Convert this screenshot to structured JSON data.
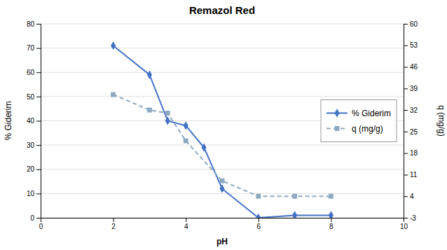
{
  "chart_data": {
    "type": "line",
    "title": "Remazol Red",
    "x_label": "pH",
    "y_label": "% Giderim",
    "y2_label": "q (mg/g)",
    "xlim": [
      0,
      10
    ],
    "xticks": [
      0,
      2,
      4,
      6,
      8,
      10
    ],
    "ylim": [
      0,
      80
    ],
    "yticks": [
      0,
      10,
      20,
      30,
      40,
      50,
      60,
      70,
      80
    ],
    "y2lim": [
      -3,
      60
    ],
    "y2ticks": [
      -3,
      4,
      11,
      18,
      25,
      32,
      39,
      46,
      53,
      60
    ],
    "grid": true,
    "legend": "right",
    "series": [
      {
        "name": "% Giderim",
        "color": "#4472C4",
        "marker": "diamond",
        "line_style": "solid",
        "axis": "y",
        "x": [
          2,
          3,
          3.5,
          4,
          4.5,
          5,
          6,
          7,
          8
        ],
        "values": [
          71,
          59,
          40,
          38,
          29,
          12,
          0,
          1,
          1
        ]
      },
      {
        "name": "q (mg/g)",
        "color": "#8EA9C1",
        "marker": "square",
        "line_style": "dashed",
        "axis": "y2",
        "x": [
          2,
          3,
          3.5,
          4,
          5,
          6,
          7,
          8
        ],
        "values": [
          37,
          32,
          31,
          22,
          9,
          4,
          4,
          4
        ]
      }
    ]
  }
}
